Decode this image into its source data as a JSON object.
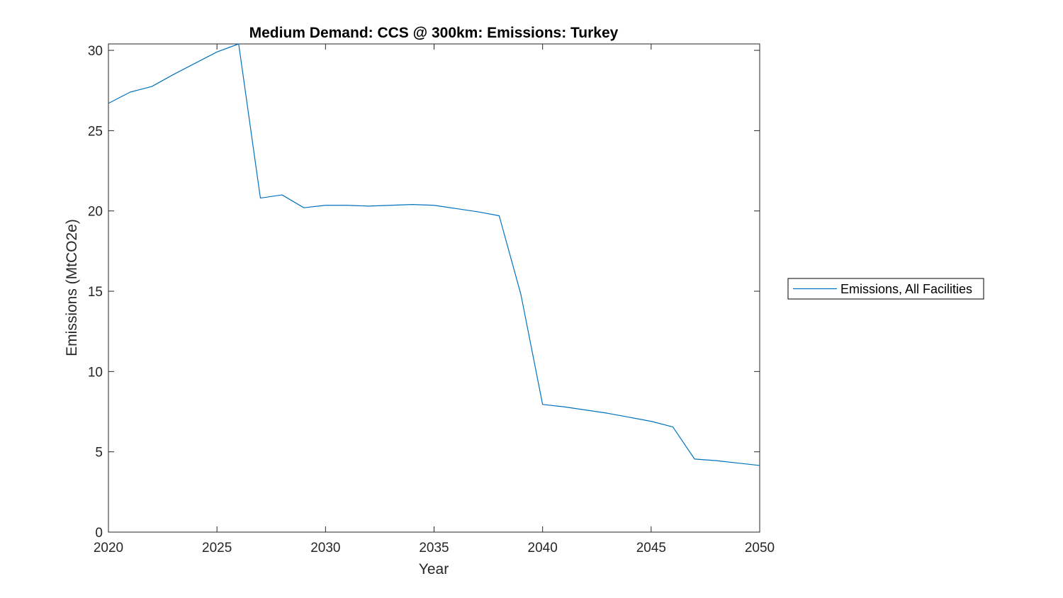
{
  "chart_data": {
    "type": "line",
    "title": "Medium Demand: CCS @ 300km: Emissions: Turkey",
    "xlabel": "Year",
    "ylabel": "Emissions (MtCO2e)",
    "xlim": [
      2020,
      2050
    ],
    "ylim": [
      0,
      30.4
    ],
    "xticks": [
      "2020",
      "2025",
      "2030",
      "2035",
      "2040",
      "2045",
      "2050"
    ],
    "yticks": [
      "0",
      "5",
      "10",
      "15",
      "20",
      "25",
      "30"
    ],
    "grid": false,
    "legend_position": "outside-right",
    "series": [
      {
        "name": "Emissions, All Facilities",
        "color": "#0072BD",
        "x": [
          2020,
          2021,
          2022,
          2023,
          2024,
          2025,
          2026,
          2027,
          2028,
          2029,
          2030,
          2031,
          2032,
          2033,
          2034,
          2035,
          2036,
          2037,
          2038,
          2039,
          2040,
          2041,
          2042,
          2043,
          2044,
          2045,
          2046,
          2047,
          2048,
          2049,
          2050
        ],
        "y": [
          26.7,
          27.4,
          27.75,
          28.5,
          29.2,
          29.9,
          30.4,
          20.8,
          21.0,
          20.2,
          20.35,
          20.35,
          20.3,
          20.35,
          20.4,
          20.35,
          20.15,
          19.95,
          19.7,
          14.8,
          7.95,
          7.8,
          7.6,
          7.4,
          7.15,
          6.9,
          6.55,
          4.55,
          4.45,
          4.3,
          4.15
        ]
      }
    ]
  }
}
